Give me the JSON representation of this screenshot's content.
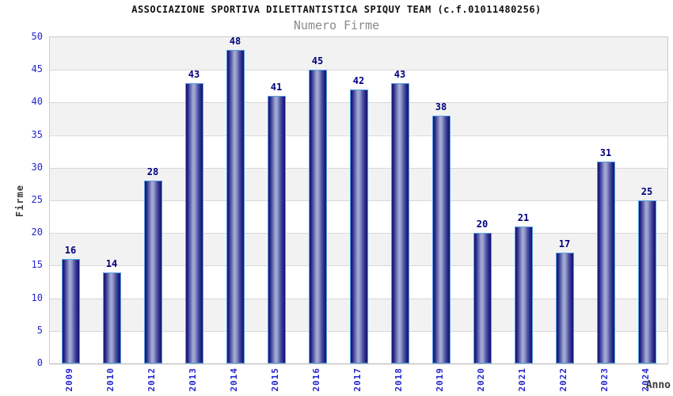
{
  "chart_data": {
    "type": "bar",
    "title": "ASSOCIAZIONE SPORTIVA DILETTANTISTICA SPIQUY TEAM (c.f.01011480256)",
    "subtitle": "Numero Firme",
    "xlabel": "Anno",
    "ylabel": "Firme",
    "categories": [
      "2009",
      "2010",
      "2012",
      "2013",
      "2014",
      "2015",
      "2016",
      "2017",
      "2018",
      "2019",
      "2020",
      "2021",
      "2022",
      "2023",
      "2024"
    ],
    "values": [
      16,
      14,
      28,
      43,
      48,
      41,
      45,
      42,
      43,
      38,
      20,
      21,
      17,
      31,
      25
    ],
    "ylim": [
      0,
      50
    ],
    "ytick_step": 5,
    "grid": "horizontal",
    "background_bands": "alternating gray/white every 5 units, gray on top band",
    "legend": "none",
    "bar_label_position": "above-bar",
    "colors": {
      "title": "#111111",
      "subtitle": "#8a8a8a",
      "tick_labels": "#2424cc",
      "value_labels": "#00007d",
      "axis_titles": "#3a3a3a",
      "band_fill": "#f2f2f2",
      "gridline": "#d8d8d8",
      "plot_border": "#cccccc",
      "bar_edge_dark": "#14146e",
      "bar_center_light": "#a9aed6",
      "bar_outline": "#57a0e2"
    }
  }
}
